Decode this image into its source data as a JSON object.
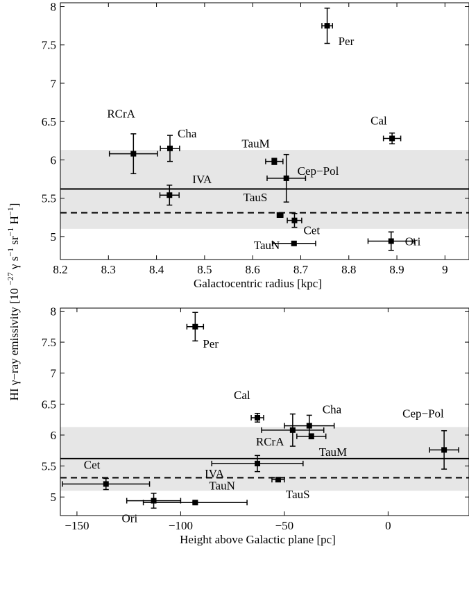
{
  "figure": {
    "shared_ylabel": "HI γ−ray emissivity [10 −27 γ s−1 sr−1 H−1]"
  },
  "chart_data": [
    {
      "type": "scatter",
      "title": "",
      "xlabel": "Galactocentric radius [kpc]",
      "ylabel": "HI γ−ray emissivity [10 −27 γ s−1 sr−1 H−1]",
      "xlim": [
        8.2,
        9.05
      ],
      "ylim": [
        4.7,
        8.05
      ],
      "xticks": [
        8.2,
        8.3,
        8.4,
        8.5,
        8.6,
        8.7,
        8.8,
        8.9,
        9
      ],
      "xtick_labels": [
        "8.2",
        "8.3",
        "8.4",
        "8.5",
        "8.6",
        "8.7",
        "8.8",
        "8.9",
        "9"
      ],
      "yticks": [
        5,
        5.5,
        6,
        6.5,
        7,
        7.5,
        8
      ],
      "ytick_labels": [
        "5",
        "5.5",
        "6",
        "6.5",
        "7",
        "7.5",
        "8"
      ],
      "grid": false,
      "band": {
        "ymin": 5.1,
        "ymax": 6.13,
        "color": "#e6e6e6"
      },
      "solid_line": {
        "y": 5.62
      },
      "dashed_line": {
        "y": 5.31
      },
      "points": [
        {
          "label": "Per",
          "x": 8.755,
          "y": 7.75,
          "xerr": [
            0.011,
            0.011
          ],
          "yerr": [
            0.23,
            0.23
          ]
        },
        {
          "label": "Cal",
          "x": 8.89,
          "y": 6.28,
          "xerr": [
            0.018,
            0.018
          ],
          "yerr": [
            0.07,
            0.07
          ]
        },
        {
          "label": "RCrA",
          "x": 8.352,
          "y": 6.08,
          "xerr": [
            0.05,
            0.05
          ],
          "yerr": [
            0.26,
            0.26
          ]
        },
        {
          "label": "Cha",
          "x": 8.428,
          "y": 6.15,
          "xerr": [
            0.02,
            0.02
          ],
          "yerr": [
            0.17,
            0.17
          ]
        },
        {
          "label": "TauM",
          "x": 8.645,
          "y": 5.98,
          "xerr": [
            0.018,
            0.018
          ],
          "yerr": [
            0.04,
            0.04
          ]
        },
        {
          "label": "Cep−Pol",
          "x": 8.67,
          "y": 5.76,
          "xerr": [
            0.04,
            0.04
          ],
          "yerr": [
            0.31,
            0.31
          ]
        },
        {
          "label": "IVA",
          "x": 8.427,
          "y": 5.54,
          "xerr": [
            0.02,
            0.02
          ],
          "yerr": [
            0.13,
            0.13
          ]
        },
        {
          "label": "TauS",
          "x": 8.657,
          "y": 5.28,
          "xerr": [
            0.006,
            0.006
          ],
          "yerr": [
            0.03,
            0.03
          ]
        },
        {
          "label": "Cet",
          "x": 8.687,
          "y": 5.21,
          "xerr": [
            0.015,
            0.015
          ],
          "yerr": [
            0.09,
            0.09
          ]
        },
        {
          "label": "TauN",
          "x": 8.686,
          "y": 4.91,
          "xerr": [
            0.045,
            0.045
          ],
          "yerr": [
            0.02,
            0.02
          ]
        },
        {
          "label": "Ori",
          "x": 8.888,
          "y": 4.94,
          "xerr": [
            0.048,
            0.048
          ],
          "yerr": [
            0.12,
            0.12
          ]
        }
      ]
    },
    {
      "type": "scatter",
      "title": "",
      "xlabel": "Height above Galactic plane [pc]",
      "ylabel": "HI γ−ray emissivity [10 −27 γ s−1 sr−1 H−1]",
      "xlim": [
        -158,
        39
      ],
      "ylim": [
        4.7,
        8.05
      ],
      "xticks": [
        -150,
        -100,
        -50,
        0
      ],
      "xtick_labels": [
        "−150",
        "−100",
        "−50",
        "0"
      ],
      "yticks": [
        5,
        5.5,
        6,
        6.5,
        7,
        7.5,
        8
      ],
      "ytick_labels": [
        "5",
        "5.5",
        "6",
        "6.5",
        "7",
        "7.5",
        "8"
      ],
      "grid": false,
      "band": {
        "ymin": 5.1,
        "ymax": 6.13,
        "color": "#e6e6e6"
      },
      "solid_line": {
        "y": 5.62
      },
      "dashed_line": {
        "y": 5.31
      },
      "points": [
        {
          "label": "Per",
          "x": -93,
          "y": 7.75,
          "xerr": [
            4,
            4
          ],
          "yerr": [
            0.23,
            0.23
          ]
        },
        {
          "label": "Cal",
          "x": -63,
          "y": 6.28,
          "xerr": [
            3,
            3
          ],
          "yerr": [
            0.07,
            0.07
          ]
        },
        {
          "label": "Cha",
          "x": -38,
          "y": 6.15,
          "xerr": [
            12,
            12
          ],
          "yerr": [
            0.17,
            0.17
          ]
        },
        {
          "label": "RCrA",
          "x": -46,
          "y": 6.08,
          "xerr": [
            15,
            15
          ],
          "yerr": [
            0.26,
            0.26
          ]
        },
        {
          "label": "TauM",
          "x": -37,
          "y": 5.98,
          "xerr": [
            7,
            7
          ],
          "yerr": [
            0.04,
            0.04
          ]
        },
        {
          "label": "Cep−Pol",
          "x": 27,
          "y": 5.76,
          "xerr": [
            7,
            7
          ],
          "yerr": [
            0.31,
            0.31
          ]
        },
        {
          "label": "IVA",
          "x": -63,
          "y": 5.54,
          "xerr": [
            22,
            22
          ],
          "yerr": [
            0.13,
            0.13
          ]
        },
        {
          "label": "TauS",
          "x": -53,
          "y": 5.28,
          "xerr": [
            3,
            3
          ],
          "yerr": [
            0.03,
            0.03
          ]
        },
        {
          "label": "Cet",
          "x": -136,
          "y": 5.21,
          "xerr": [
            21,
            21
          ],
          "yerr": [
            0.09,
            0.09
          ]
        },
        {
          "label": "TauN",
          "x": -93,
          "y": 4.91,
          "xerr": [
            25,
            25
          ],
          "yerr": [
            0.02,
            0.02
          ]
        },
        {
          "label": "Ori",
          "x": -113,
          "y": 4.94,
          "xerr": [
            13,
            13
          ],
          "yerr": [
            0.12,
            0.12
          ]
        }
      ]
    }
  ]
}
